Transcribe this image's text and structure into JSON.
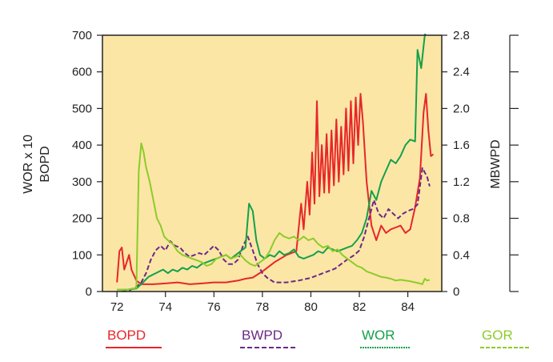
{
  "chart_data": {
    "type": "line",
    "title": "",
    "background_color": "#fbe6a6",
    "x_axis": {
      "ticks": [
        "72",
        "74",
        "76",
        "78",
        "80",
        "82",
        "84"
      ],
      "range": [
        71.4,
        85.4
      ]
    },
    "y_left": {
      "label_lines": [
        "WOR x 10",
        "BOPD"
      ],
      "ticks": [
        "0",
        "100",
        "200",
        "300",
        "400",
        "500",
        "600",
        "700"
      ],
      "range": [
        0,
        700
      ]
    },
    "y_right": {
      "label": "MBWPD",
      "ticks": [
        "0",
        "0.4",
        "0.8",
        "1.2",
        "1.6",
        "2.0",
        "2.4",
        "2.8"
      ],
      "range": [
        0,
        2.8
      ]
    },
    "grid": false,
    "legend_position": "bottom",
    "series": [
      {
        "name": "BOPD",
        "color": "#e8262a",
        "dash": "solid",
        "points": [
          [
            72.0,
            25
          ],
          [
            72.1,
            110
          ],
          [
            72.2,
            120
          ],
          [
            72.3,
            60
          ],
          [
            72.4,
            80
          ],
          [
            72.5,
            100
          ],
          [
            72.6,
            60
          ],
          [
            72.8,
            30
          ],
          [
            73.0,
            20
          ],
          [
            73.5,
            20
          ],
          [
            74.0,
            22
          ],
          [
            74.5,
            25
          ],
          [
            75.0,
            20
          ],
          [
            75.5,
            22
          ],
          [
            76.0,
            25
          ],
          [
            76.5,
            25
          ],
          [
            77.0,
            30
          ],
          [
            77.3,
            35
          ],
          [
            77.6,
            38
          ],
          [
            78.0,
            55
          ],
          [
            78.5,
            80
          ],
          [
            79.0,
            100
          ],
          [
            79.4,
            110
          ],
          [
            79.6,
            240
          ],
          [
            79.7,
            170
          ],
          [
            79.85,
            300
          ],
          [
            79.95,
            210
          ],
          [
            80.05,
            380
          ],
          [
            80.15,
            240
          ],
          [
            80.25,
            520
          ],
          [
            80.35,
            260
          ],
          [
            80.45,
            400
          ],
          [
            80.55,
            270
          ],
          [
            80.65,
            430
          ],
          [
            80.75,
            270
          ],
          [
            80.85,
            440
          ],
          [
            80.95,
            290
          ],
          [
            81.05,
            470
          ],
          [
            81.15,
            300
          ],
          [
            81.25,
            450
          ],
          [
            81.35,
            320
          ],
          [
            81.45,
            500
          ],
          [
            81.55,
            330
          ],
          [
            81.65,
            520
          ],
          [
            81.75,
            350
          ],
          [
            81.85,
            530
          ],
          [
            81.95,
            400
          ],
          [
            82.05,
            540
          ],
          [
            82.15,
            460
          ],
          [
            82.3,
            300
          ],
          [
            82.5,
            180
          ],
          [
            82.7,
            140
          ],
          [
            82.9,
            180
          ],
          [
            83.1,
            160
          ],
          [
            83.3,
            170
          ],
          [
            83.5,
            175
          ],
          [
            83.7,
            180
          ],
          [
            83.9,
            160
          ],
          [
            84.1,
            170
          ],
          [
            84.3,
            230
          ],
          [
            84.5,
            310
          ],
          [
            84.65,
            490
          ],
          [
            84.75,
            540
          ],
          [
            84.85,
            440
          ],
          [
            84.95,
            370
          ],
          [
            85.05,
            375
          ]
        ]
      },
      {
        "name": "BWPD",
        "color": "#6a2a87",
        "dash": "dashed",
        "points": [
          [
            72.2,
            0
          ],
          [
            72.5,
            0.01
          ],
          [
            72.8,
            0.05
          ],
          [
            73.0,
            0.1
          ],
          [
            73.2,
            0.2
          ],
          [
            73.4,
            0.35
          ],
          [
            73.6,
            0.45
          ],
          [
            73.8,
            0.5
          ],
          [
            74.0,
            0.45
          ],
          [
            74.2,
            0.55
          ],
          [
            74.4,
            0.5
          ],
          [
            74.6,
            0.48
          ],
          [
            74.8,
            0.42
          ],
          [
            75.0,
            0.38
          ],
          [
            75.2,
            0.4
          ],
          [
            75.4,
            0.42
          ],
          [
            75.6,
            0.4
          ],
          [
            75.8,
            0.45
          ],
          [
            76.0,
            0.5
          ],
          [
            76.2,
            0.45
          ],
          [
            76.4,
            0.35
          ],
          [
            76.6,
            0.3
          ],
          [
            76.8,
            0.3
          ],
          [
            77.0,
            0.35
          ],
          [
            77.2,
            0.5
          ],
          [
            77.4,
            0.6
          ],
          [
            77.6,
            0.45
          ],
          [
            77.8,
            0.3
          ],
          [
            78.0,
            0.2
          ],
          [
            78.2,
            0.15
          ],
          [
            78.5,
            0.1
          ],
          [
            79.0,
            0.1
          ],
          [
            79.5,
            0.12
          ],
          [
            80.0,
            0.15
          ],
          [
            80.5,
            0.2
          ],
          [
            81.0,
            0.25
          ],
          [
            81.5,
            0.35
          ],
          [
            81.8,
            0.4
          ],
          [
            82.0,
            0.45
          ],
          [
            82.2,
            0.6
          ],
          [
            82.4,
            0.8
          ],
          [
            82.6,
            1.0
          ],
          [
            82.8,
            0.85
          ],
          [
            83.0,
            0.8
          ],
          [
            83.2,
            0.9
          ],
          [
            83.4,
            0.85
          ],
          [
            83.6,
            0.8
          ],
          [
            83.8,
            0.85
          ],
          [
            84.0,
            0.88
          ],
          [
            84.2,
            0.9
          ],
          [
            84.4,
            0.95
          ],
          [
            84.6,
            1.35
          ],
          [
            84.8,
            1.25
          ],
          [
            84.9,
            1.15
          ]
        ]
      },
      {
        "name": "WOR",
        "color": "#14a04a",
        "dash": "solid",
        "points": [
          [
            72.0,
            5
          ],
          [
            72.4,
            5
          ],
          [
            72.8,
            8
          ],
          [
            73.0,
            20
          ],
          [
            73.3,
            40
          ],
          [
            73.6,
            50
          ],
          [
            73.9,
            60
          ],
          [
            74.1,
            50
          ],
          [
            74.3,
            60
          ],
          [
            74.5,
            55
          ],
          [
            74.7,
            65
          ],
          [
            74.9,
            60
          ],
          [
            75.1,
            70
          ],
          [
            75.3,
            65
          ],
          [
            75.5,
            75
          ],
          [
            75.7,
            80
          ],
          [
            75.9,
            85
          ],
          [
            76.1,
            90
          ],
          [
            76.3,
            95
          ],
          [
            76.5,
            100
          ],
          [
            76.7,
            90
          ],
          [
            76.9,
            100
          ],
          [
            77.1,
            110
          ],
          [
            77.3,
            120
          ],
          [
            77.45,
            240
          ],
          [
            77.6,
            220
          ],
          [
            77.75,
            140
          ],
          [
            77.9,
            100
          ],
          [
            78.1,
            90
          ],
          [
            78.3,
            100
          ],
          [
            78.5,
            95
          ],
          [
            78.7,
            110
          ],
          [
            78.9,
            100
          ],
          [
            79.1,
            105
          ],
          [
            79.3,
            115
          ],
          [
            79.5,
            95
          ],
          [
            79.7,
            90
          ],
          [
            79.9,
            95
          ],
          [
            80.1,
            100
          ],
          [
            80.3,
            110
          ],
          [
            80.5,
            105
          ],
          [
            80.7,
            120
          ],
          [
            80.9,
            115
          ],
          [
            81.1,
            110
          ],
          [
            81.3,
            115
          ],
          [
            81.5,
            120
          ],
          [
            81.7,
            125
          ],
          [
            81.9,
            140
          ],
          [
            82.1,
            160
          ],
          [
            82.3,
            200
          ],
          [
            82.5,
            275
          ],
          [
            82.7,
            250
          ],
          [
            82.9,
            300
          ],
          [
            83.1,
            330
          ],
          [
            83.3,
            360
          ],
          [
            83.5,
            350
          ],
          [
            83.7,
            370
          ],
          [
            83.9,
            400
          ],
          [
            84.1,
            415
          ],
          [
            84.3,
            410
          ],
          [
            84.4,
            660
          ],
          [
            84.55,
            610
          ],
          [
            84.7,
            700
          ],
          [
            84.8,
            720
          ]
        ]
      },
      {
        "name": "GOR",
        "color": "#8ccc2a",
        "dash": "solid",
        "points": [
          [
            72.0,
            5
          ],
          [
            72.4,
            5
          ],
          [
            72.8,
            10
          ],
          [
            72.9,
            330
          ],
          [
            73.0,
            405
          ],
          [
            73.1,
            380
          ],
          [
            73.2,
            340
          ],
          [
            73.35,
            300
          ],
          [
            73.5,
            250
          ],
          [
            73.65,
            200
          ],
          [
            73.8,
            180
          ],
          [
            73.95,
            150
          ],
          [
            74.1,
            140
          ],
          [
            74.3,
            130
          ],
          [
            74.5,
            110
          ],
          [
            74.7,
            100
          ],
          [
            74.9,
            95
          ],
          [
            75.1,
            90
          ],
          [
            75.3,
            85
          ],
          [
            75.5,
            80
          ],
          [
            75.7,
            70
          ],
          [
            75.9,
            75
          ],
          [
            76.1,
            90
          ],
          [
            76.3,
            95
          ],
          [
            76.5,
            100
          ],
          [
            76.7,
            90
          ],
          [
            76.9,
            95
          ],
          [
            77.1,
            100
          ],
          [
            77.3,
            85
          ],
          [
            77.5,
            75
          ],
          [
            77.7,
            70
          ],
          [
            77.9,
            80
          ],
          [
            78.1,
            90
          ],
          [
            78.3,
            110
          ],
          [
            78.5,
            140
          ],
          [
            78.7,
            160
          ],
          [
            78.9,
            150
          ],
          [
            79.1,
            145
          ],
          [
            79.3,
            150
          ],
          [
            79.5,
            140
          ],
          [
            79.7,
            150
          ],
          [
            79.9,
            140
          ],
          [
            80.1,
            145
          ],
          [
            80.3,
            130
          ],
          [
            80.5,
            120
          ],
          [
            80.7,
            125
          ],
          [
            80.9,
            110
          ],
          [
            81.1,
            115
          ],
          [
            81.3,
            100
          ],
          [
            81.5,
            90
          ],
          [
            81.7,
            80
          ],
          [
            81.9,
            70
          ],
          [
            82.1,
            65
          ],
          [
            82.3,
            55
          ],
          [
            82.5,
            50
          ],
          [
            82.7,
            45
          ],
          [
            82.9,
            40
          ],
          [
            83.1,
            38
          ],
          [
            83.3,
            35
          ],
          [
            83.5,
            30
          ],
          [
            83.7,
            32
          ],
          [
            83.9,
            30
          ],
          [
            84.1,
            28
          ],
          [
            84.3,
            25
          ],
          [
            84.5,
            22
          ],
          [
            84.6,
            20
          ],
          [
            84.7,
            35
          ],
          [
            84.8,
            30
          ],
          [
            84.9,
            32
          ]
        ]
      }
    ]
  }
}
